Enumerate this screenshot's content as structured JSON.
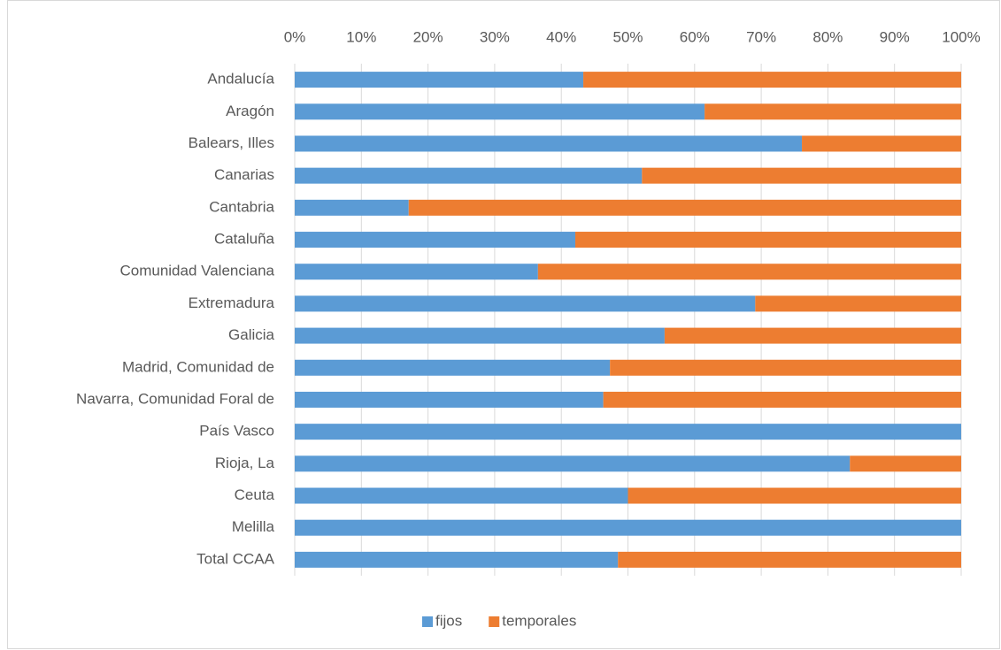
{
  "chart_data": {
    "type": "bar",
    "orientation": "horizontal",
    "stacked": true,
    "categories": [
      "Andalucía",
      "Aragón",
      "Balears, Illes",
      "Canarias",
      "Cantabria",
      "Cataluña",
      "Comunidad Valenciana",
      "Extremadura",
      "Galicia",
      "Madrid, Comunidad de",
      "Navarra, Comunidad Foral de",
      "País Vasco",
      "Rioja, La",
      "Ceuta",
      "Melilla",
      "Total CCAA"
    ],
    "series": [
      {
        "name": "fijos",
        "color": "#5b9bd5",
        "values": [
          43.3,
          61.5,
          76.1,
          52.1,
          17.1,
          42.1,
          36.5,
          69.1,
          55.5,
          47.3,
          46.3,
          100,
          83.3,
          50,
          100,
          48.5
        ]
      },
      {
        "name": "temporales",
        "color": "#ed7d31",
        "values": [
          56.7,
          38.5,
          23.9,
          47.9,
          82.9,
          57.9,
          63.5,
          30.9,
          44.5,
          52.7,
          53.7,
          0,
          16.7,
          50,
          0,
          51.5
        ]
      }
    ],
    "xlim": [
      0,
      100
    ],
    "xticks": [
      {
        "value": 0,
        "label": "0%"
      },
      {
        "value": 10,
        "label": "10%"
      },
      {
        "value": 20,
        "label": "20%"
      },
      {
        "value": 30,
        "label": "30%"
      },
      {
        "value": 40,
        "label": "40%"
      },
      {
        "value": 50,
        "label": "50%"
      },
      {
        "value": 60,
        "label": "60%"
      },
      {
        "value": 70,
        "label": "70%"
      },
      {
        "value": 80,
        "label": "80%"
      },
      {
        "value": 90,
        "label": "90%"
      },
      {
        "value": 100,
        "label": "100%"
      }
    ],
    "grid": true,
    "legend": "bottom"
  }
}
